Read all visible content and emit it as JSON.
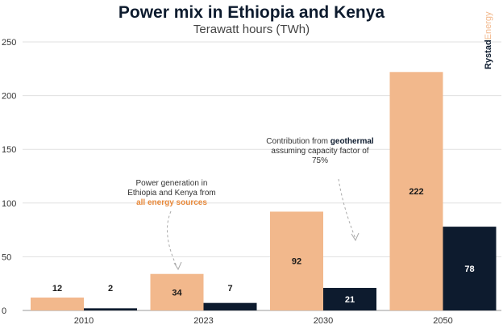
{
  "chart_data": {
    "type": "bar",
    "title": "Power mix in Ethiopia and Kenya",
    "subtitle": "Terawatt hours (TWh)",
    "categories": [
      "2010",
      "2023",
      "2030",
      "2050"
    ],
    "series": [
      {
        "values": [
          12,
          34,
          92,
          222
        ],
        "color": "#f2b88c"
      },
      {
        "values": [
          2,
          7,
          21,
          78
        ],
        "color": "#0d1b2e"
      }
    ],
    "data_labels": [
      [
        "12",
        "34",
        "92",
        "222"
      ],
      [
        "2",
        "7",
        "21",
        "78"
      ]
    ],
    "ylim": [
      0,
      250
    ],
    "yticks": [
      "0",
      "50",
      "100",
      "150",
      "200",
      "250"
    ],
    "grid": true,
    "legend": "none",
    "annotations": {
      "all_sources": {
        "line1": "Power generation in",
        "line2": "Ethiopia and Kenya from",
        "highlight": "all energy sources"
      },
      "geothermal": {
        "prefix": "Contribution from",
        "highlight": "geothermal",
        "line2": "assuming capacity factor of",
        "line3": "75%"
      }
    }
  },
  "brand": {
    "part1": "Rystad",
    "part2": "Energy"
  },
  "colors": {
    "orange": "#f2b88c",
    "navy": "#0d1b2e",
    "grid": "#e0e0e0",
    "axis_text": "#333333"
  }
}
